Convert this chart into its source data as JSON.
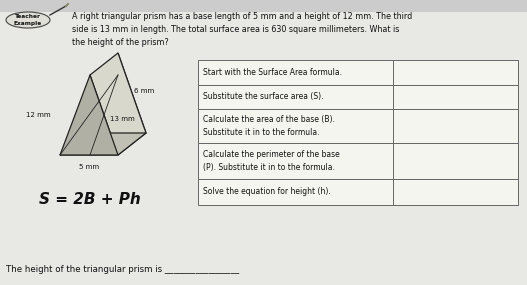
{
  "bg_color": "#e8e8e4",
  "problem_text": "A right triangular prism has a base length of 5 mm and a height of 12 mm. The third\nside is 13 mm in length. The total surface area is 630 square millimeters. What is\nthe height of the prism?",
  "formula": "S = 2B + Ph",
  "table_steps": [
    "Start with the Surface Area formula.",
    "Substitute the surface area (S).",
    "Calculate the area of the base (B).\nSubstitute it in to the formula.",
    "Calculate the perimeter of the base\n(P). Substitute it in to the formula.",
    "Solve the equation for height (h)."
  ],
  "footer_text": "The height of the triangular prism is _________________",
  "text_color": "#111111",
  "table_line_color": "#666666",
  "table_bg": "#f5f5f0",
  "prism_edge_color": "#222222",
  "prism_face_light": "#d8d8cc",
  "prism_face_mid": "#c0c0b4",
  "prism_face_dark": "#b0b0a4"
}
